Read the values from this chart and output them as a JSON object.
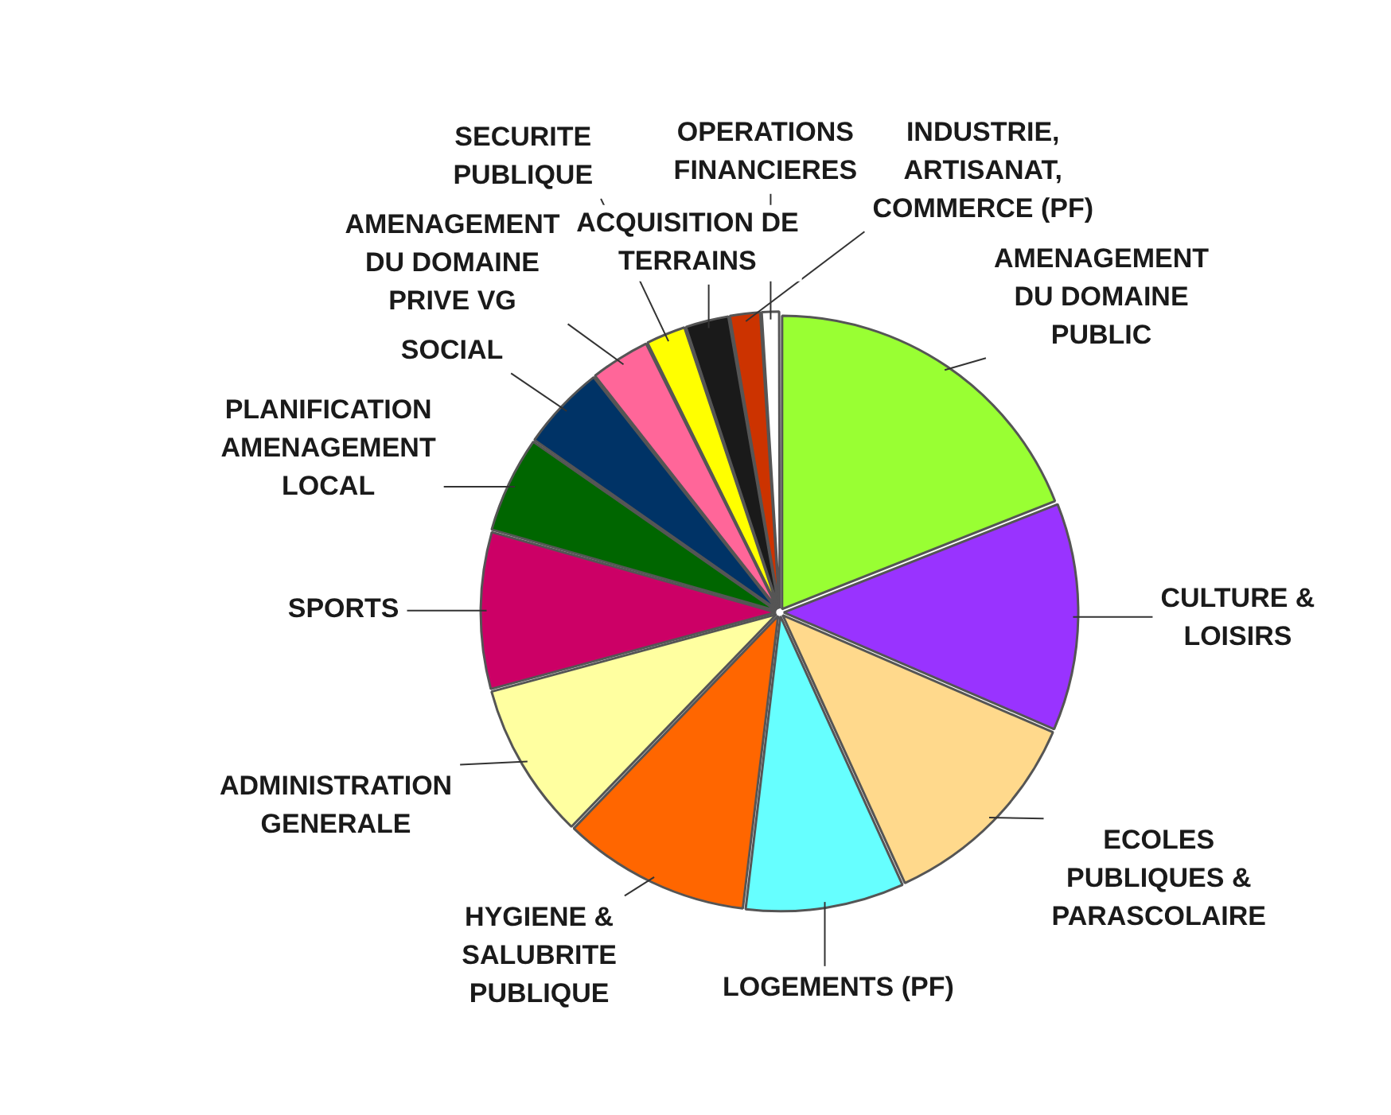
{
  "chart_data": {
    "type": "pie",
    "categories": [
      "AMENAGEMENT DU DOMAINE PUBLIC",
      "CULTURE & LOISIRS",
      "ECOLES PUBLIQUES & PARASCOLAIRE",
      "LOGEMENTS (PF)",
      "HYGIENE & SALUBRITE PUBLIQUE",
      "ADMINISTRATION GENERALE",
      "SPORTS",
      "PLANIFICATION AMENAGEMENT LOCAL",
      "SOCIAL",
      "AMENAGEMENT DU DOMAINE PRIVE VG",
      "SECURITE PUBLIQUE",
      "ACQUISITION DE TERRAINS",
      "INDUSTRIE, ARTISANAT, COMMERCE (PF)",
      "OPERATIONS FINANCIERES"
    ],
    "values": [
      19,
      12.5,
      11.7,
      8.7,
      10.3,
      8.6,
      8.6,
      5.3,
      4.7,
      3.3,
      2.2,
      2.4,
      1.7,
      1
    ],
    "colors": [
      "#99ff33",
      "#9933ff",
      "#ffd98c",
      "#66ffff",
      "#ff6600",
      "#ffffa0",
      "#cc0066",
      "#006600",
      "#003366",
      "#ff6699",
      "#ffff00",
      "#1a1a1a",
      "#cc3300",
      "#ffffff"
    ],
    "legend": false
  }
}
